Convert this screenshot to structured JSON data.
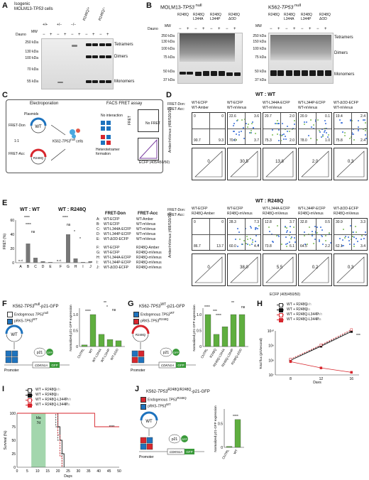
{
  "panels": {
    "A": "A",
    "B": "B",
    "C": "C",
    "D": "D",
    "E": "E",
    "F": "F",
    "G": "G",
    "H": "H",
    "I": "I",
    "J": "J"
  },
  "A": {
    "title1": "Isogenic",
    "title2": "MOLM13-",
    "title2_it": "TP53",
    "title2_sup": " cells",
    "genotypes": [
      "+/+",
      "+/−",
      "−/−",
      "R248Q/+",
      "R248Q/−"
    ],
    "dauno_label": "Dauno",
    "mw_label": "MW",
    "treat": [
      "−",
      "+",
      "−",
      "+",
      "−",
      "+",
      "−",
      "+",
      "−",
      "+"
    ],
    "markers": [
      "250 kDa",
      "130 kDa",
      "100 kDa",
      "70 kDa",
      "55 kDa"
    ],
    "bands": [
      "Tetramers",
      "Dimers",
      "Monomers"
    ]
  },
  "B": {
    "left_title": "MOLM13-",
    "left_title_it": "TP53",
    "left_sup": " null",
    "right_title": "K562-",
    "right_title_it": "TP53",
    "right_sup": " null",
    "cols": [
      "R248Q",
      "R248Q L344A",
      "R248Q L344P",
      "R248Q ΔOD"
    ],
    "dauno_label": "Dauno",
    "mw_label": "MW",
    "treat": [
      "−",
      "+",
      "−",
      "+",
      "−",
      "+",
      "−",
      "+"
    ],
    "markers": [
      "250 kDa",
      "130 kDa",
      "100 kDa",
      "75 kDa",
      "50 kDa",
      "37 kDa"
    ],
    "markers_right": [
      "250 kDa",
      "150 kDa",
      "100 kDa",
      "75 kDa",
      "50 kDa",
      "37 kDa"
    ],
    "bands": [
      "Tetramers",
      "Dimers",
      "Monomers"
    ]
  },
  "C": {
    "electroporation": "Electroporation",
    "facs": "FACS FRET assay",
    "plasmids": "Plasmids",
    "wt": "WT",
    "mut": "R248Q",
    "fret_don": "FRET-Don",
    "fret_acc": "FRET-Acc",
    "ratio": "1:1",
    "cells": "K562-",
    "cells_it": "TP53",
    "cells_sup": "null",
    "cells_end": " cells",
    "no_interaction": "No interaction",
    "hetero": "Heterotetramer formation",
    "no_fret": "No FRET",
    "fret": "FRET",
    "fret_axis": "FRET (405/525/50)",
    "ecfp_axis": "ECFP (405/450/50)"
  },
  "D": {
    "title_wt": "WT : WT",
    "title_r": "WT : R248Q",
    "don_label": "FRET-Don:",
    "acc_label": "FRET-Acc:",
    "top_don": [
      "WT-ECFP",
      "WT-ECFP",
      "WT-L344A-ECFP",
      "WT-L344P-ECFP",
      "WT-ΔOD-ECFP"
    ],
    "top_acc": [
      "WT-Amber",
      "WT-mVenus",
      "WT-mVenus",
      "WT-mVenus",
      "WT-mVenus"
    ],
    "top_q": [
      [
        "0",
        "0",
        "90.7",
        "9.3"
      ],
      [
        "22.6",
        "3.6",
        "70.0",
        "3.7"
      ],
      [
        "20.7",
        "2.0",
        "75.3",
        "2.0"
      ],
      [
        "20.9",
        "0.1",
        "78.0",
        "1.0"
      ],
      [
        "19.4",
        "2.4",
        "75.8",
        "2.4"
      ]
    ],
    "top_fret": [
      "0",
      "30.5",
      "13.8",
      "2.0",
      "0.3"
    ],
    "bot_don": [
      "WT-ECFP",
      "WT-ECFP",
      "WT-L344A-ECFP",
      "WT-L344P-ECFP",
      "WT-ΔOD-ECFP"
    ],
    "bot_acc": [
      "R248Q-Amber",
      "R248Q-mVenus",
      "R248Q-mVenus",
      "R248Q-mVenus",
      "R248Q-mVenus"
    ],
    "bot_q": [
      [
        "0",
        "0",
        "86.7",
        "13.7"
      ],
      [
        "28.3",
        "7.3",
        "60.0",
        "4.4"
      ],
      [
        "12.8",
        "3.7",
        "73.8",
        "6.1"
      ],
      [
        "32.8",
        "0.5",
        "64.5",
        "2.2"
      ],
      [
        "30.9",
        "3.3",
        "62.1",
        "3.4"
      ]
    ],
    "bot_fret": [
      "0",
      "38.0",
      "5.5",
      "0.2",
      "0.3"
    ],
    "yaxis": "Amber/mVenus (488/530/30)",
    "fret_yaxis": "FRET (405/525/50)",
    "xaxis": "ECFP (405/450/50)"
  },
  "E": {
    "title_wt": "WT : WT",
    "title_r": "WT : R248Q",
    "ylabel": "FRET (%)",
    "yticks": [
      "0",
      "20",
      "40",
      "60"
    ],
    "cats1": [
      "A",
      "B",
      "C",
      "D",
      "E"
    ],
    "cats2": [
      "F",
      "G",
      "H",
      "I",
      "J"
    ],
    "sig": [
      "****",
      "****",
      "ns",
      "****",
      "ns",
      "*",
      "*"
    ],
    "nd": "n.d.",
    "legend_don": "FRET-Don",
    "legend_acc": "FRET-Acc",
    "legend": [
      [
        "A:",
        "WT-ECFP",
        "WT-Amber"
      ],
      [
        "B:",
        "WT-ECFP",
        "WT-mVenus"
      ],
      [
        "C:",
        "WT-L344A-ECFP",
        "WT-mVenus"
      ],
      [
        "D:",
        "WT-L344P-ECFP",
        "WT-mVenus"
      ],
      [
        "E:",
        "WT-ΔOD-ECFP",
        "WT-mVenus"
      ],
      [
        "F:",
        "WT-ECFP",
        "R248Q-Amber"
      ],
      [
        "G:",
        "WT-ECFP",
        "R248Q-mVenus"
      ],
      [
        "H:",
        "WT-L344A-ECFP",
        "R248Q-mVenus"
      ],
      [
        "I:",
        "WT-L344P-ECFP",
        "R248Q-mVenus"
      ],
      [
        "J:",
        "WT-ΔOD-ECFP",
        "R248Q-mVenus"
      ]
    ]
  },
  "F": {
    "title": "K562-",
    "title_it": "TP53",
    "title_sup": "null",
    "title_end": "-p21-GFP",
    "leg1": "Endogenous ",
    "leg1_it": "TP53",
    "leg1_sup": "null",
    "leg2": "pRK5-",
    "leg2_it": "TP53",
    "leg2_sup": "WT",
    "plasmid": "WT",
    "p21": "p21",
    "gfp": "GFP",
    "promoter": "Promoter",
    "gene": "CDKN1A",
    "ylabel": "Normalized p21-GFP expression",
    "yticks": [
      "0",
      "0.5",
      "1.0"
    ],
    "cats": [
      "CNTRL",
      "WT",
      "WT-L344A",
      "WT-L344P",
      "WT-ΔOD"
    ],
    "sig": [
      "****",
      "**",
      "*",
      "ns"
    ]
  },
  "G": {
    "title": "K562-",
    "title_it": "TP53",
    "title_sup": "WT",
    "title_end": "-p21-GFP",
    "leg1": "Endogenous ",
    "leg1_it": "TP53",
    "leg1_sup": "WT",
    "leg2": "pRK5-",
    "leg2_it": "TP53",
    "leg2_sup": "R248Q",
    "plasmid": "R248Q",
    "p21": "p21",
    "gfp": "GFP",
    "promoter": "Promoter",
    "gene": "CDKN1A",
    "ylabel": "Normalized p21-GFP expression",
    "yticks": [
      "0",
      "0.5",
      "1.0"
    ],
    "cats": [
      "CNTRL",
      "R248Q",
      "R248Q-L344A",
      "R248Q-L344P",
      "R248Q-ΔOD"
    ],
    "sig": [
      "****",
      "***",
      "****",
      "**",
      "ns"
    ]
  },
  "H": {
    "legend": [
      "WT + R248Q",
      "WT + R248Q",
      "WT + R248Q-L344P",
      "WT + R248Q-L344P"
    ],
    "legend_tag": [
      "Veh",
      "Ida",
      "Veh",
      "Ida"
    ],
    "ylabel": "Total flux (p/s/second)",
    "xlabel": "Days",
    "yticks": [
      "10⁷",
      "10⁸",
      "10⁹",
      "10¹⁰"
    ],
    "xticks": [
      "8",
      "12",
      "16"
    ],
    "sig": "***"
  },
  "I": {
    "legend": [
      "WT + R248Q",
      "WT + R248Q",
      "WT + R248Q-L344P",
      "WT + R248Q-L344P"
    ],
    "legend_tag": [
      "Veh",
      "Ida",
      "Veh",
      "Ida"
    ],
    "ylabel": "Survival (%)",
    "xlabel": "Days",
    "yticks": [
      "0",
      "25",
      "50",
      "75",
      "100"
    ],
    "xticks": [
      "0",
      "5",
      "10",
      "15",
      "20",
      "25",
      "30",
      "35",
      "40",
      "45",
      "50"
    ],
    "ida": "Ida",
    "ida_days": "7d",
    "sig": "****"
  },
  "J": {
    "title": "K562-",
    "title_it": "TP53",
    "title_sup": "R248Q/R248Q",
    "title_end": "-p21-GFP",
    "leg1": "Endogenous ",
    "leg1_it": "TP53",
    "leg1_sup": "R248Q",
    "leg2": "pRK5-",
    "leg2_it": "TP53",
    "leg2_sup": "WT",
    "plasmid": "WT",
    "p21": "p21",
    "gfp": "GFP",
    "promoter": "Promoter",
    "gene": "CDKN1A",
    "ylabel": "Normalized p21-GFP expression",
    "yticks": [
      "0",
      "0.5",
      "1.0"
    ],
    "cats": [
      "CNTRL",
      "WT"
    ],
    "sig": "****"
  },
  "chart_data": [
    {
      "type": "bar",
      "panel": "E",
      "categories": [
        "A",
        "B",
        "C",
        "D",
        "E",
        "F",
        "G",
        "H",
        "I",
        "J"
      ],
      "values": [
        0,
        27,
        7,
        2,
        1,
        0,
        40,
        6,
        1,
        2
      ],
      "ylabel": "FRET (%)",
      "ylim": [
        0,
        60
      ]
    },
    {
      "type": "bar",
      "panel": "F",
      "categories": [
        "CNTRL",
        "WT",
        "WT-L344A",
        "WT-L344P",
        "WT-ΔOD"
      ],
      "values": [
        0.05,
        1.0,
        0.38,
        0.22,
        0.18
      ],
      "ylabel": "Normalized p21-GFP expression",
      "ylim": [
        0,
        1.2
      ]
    },
    {
      "type": "bar",
      "panel": "G",
      "categories": [
        "CNTRL",
        "R248Q",
        "R248Q-L344A",
        "R248Q-L344P",
        "R248Q-ΔOD"
      ],
      "values": [
        1.0,
        0.38,
        0.62,
        1.0,
        1.0
      ],
      "ylabel": "Normalized p21-GFP expression",
      "ylim": [
        0,
        1.2
      ]
    },
    {
      "type": "line",
      "panel": "H",
      "x": [
        8,
        12,
        16
      ],
      "series": [
        {
          "name": "WT + R248Q Veh",
          "values": [
            100000000.0,
            1000000000.0,
            10000000000.0
          ]
        },
        {
          "name": "WT + R248Q Ida",
          "values": [
            100000000.0,
            900000000.0,
            9000000000.0
          ]
        },
        {
          "name": "WT + R248Q-L344P Veh",
          "values": [
            120000000.0,
            1100000000.0,
            12000000000.0
          ]
        },
        {
          "name": "WT + R248Q-L344P Ida",
          "values": [
            80000000.0,
            30000000.0,
            15000000.0
          ]
        }
      ],
      "xlabel": "Days",
      "ylabel": "Total flux (p/s/second)",
      "yscale": "log",
      "ylim": [
        10000000.0,
        10000000000.0
      ]
    },
    {
      "type": "line",
      "panel": "I",
      "series": [
        {
          "name": "WT + R248Q Veh",
          "x": [
            0,
            18,
            19,
            20,
            21,
            22
          ],
          "values": [
            100,
            100,
            75,
            50,
            25,
            0
          ]
        },
        {
          "name": "WT + R248Q Ida",
          "x": [
            0,
            19,
            20,
            21,
            22,
            23
          ],
          "values": [
            100,
            100,
            75,
            50,
            25,
            0
          ]
        },
        {
          "name": "WT + R248Q-L344P Veh",
          "x": [
            0,
            19,
            20,
            21,
            22
          ],
          "values": [
            100,
            100,
            60,
            20,
            0
          ]
        },
        {
          "name": "WT + R248Q-L344P Ida",
          "x": [
            0,
            38,
            50
          ],
          "values": [
            100,
            75,
            75
          ]
        }
      ],
      "xlabel": "Days",
      "ylabel": "Survival (%)",
      "ylim": [
        0,
        100
      ],
      "xlim": [
        0,
        50
      ]
    },
    {
      "type": "bar",
      "panel": "J",
      "categories": [
        "CNTRL",
        "WT"
      ],
      "values": [
        0.02,
        0.58
      ],
      "ylabel": "Normalized p21-GFP expression",
      "ylim": [
        0,
        0.8
      ]
    }
  ]
}
